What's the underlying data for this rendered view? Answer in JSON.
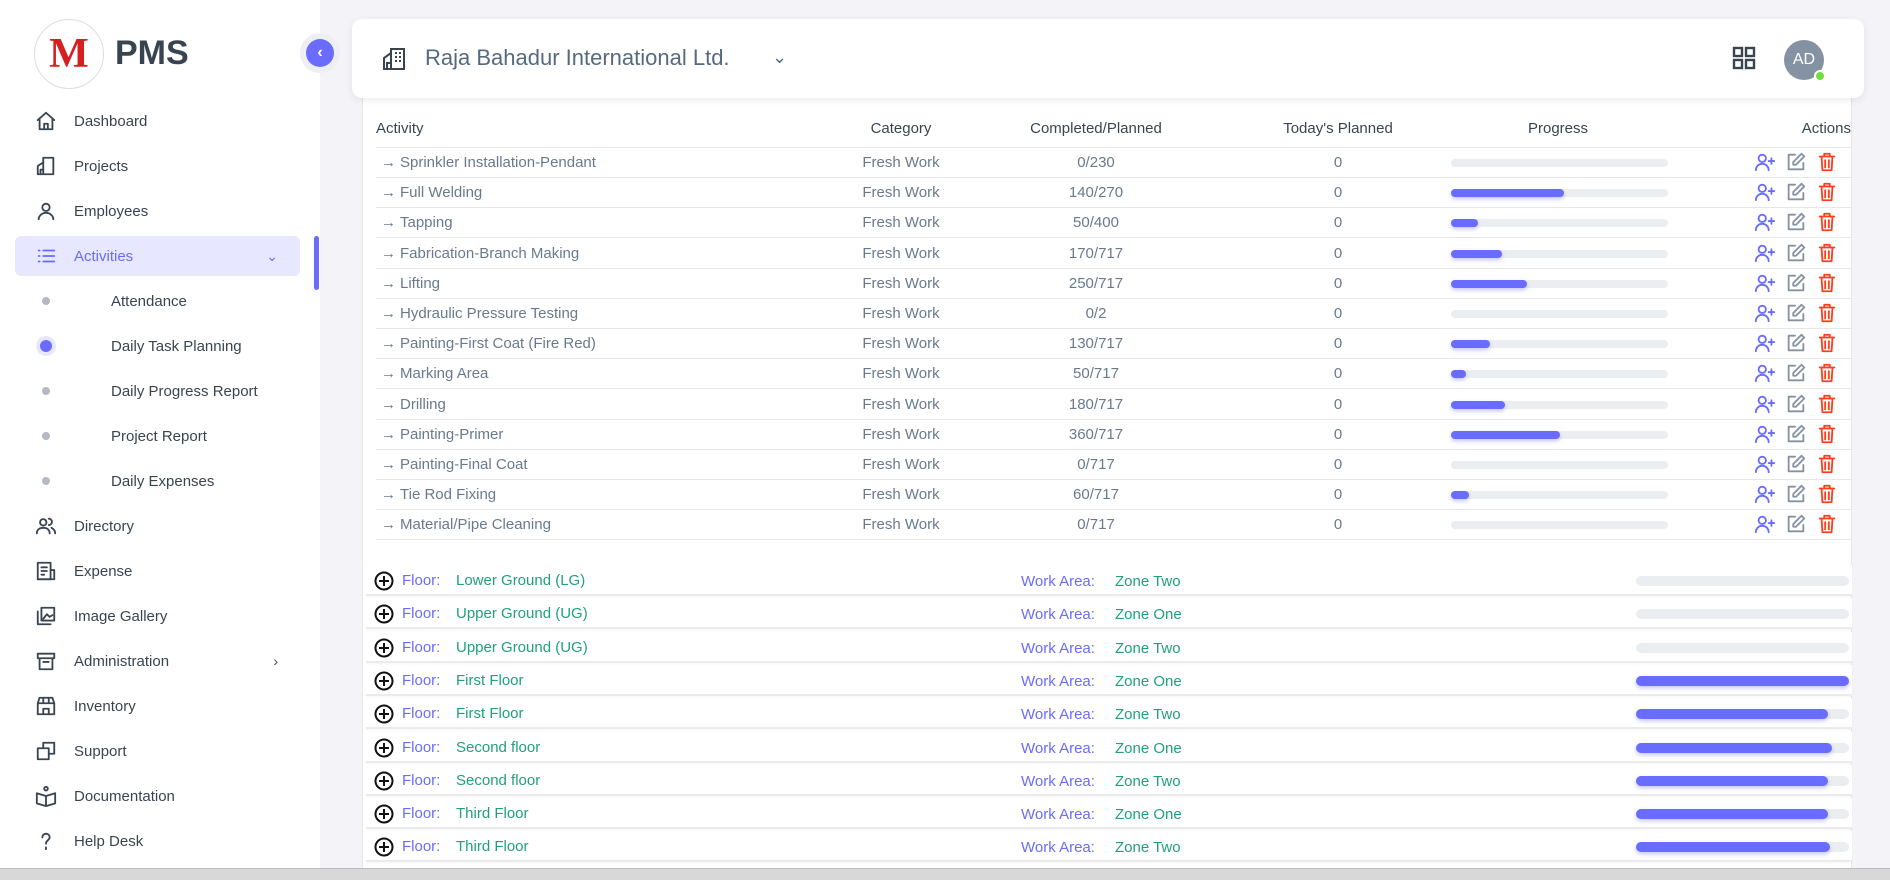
{
  "brand": {
    "logo_letter": "M",
    "name": "PMS"
  },
  "sidebar": {
    "items": [
      {
        "label": "Dashboard",
        "icon": "home-icon"
      },
      {
        "label": "Projects",
        "icon": "building-icon"
      },
      {
        "label": "Employees",
        "icon": "user-icon"
      },
      {
        "label": "Activities",
        "icon": "list-icon",
        "active": true,
        "expanded": true
      },
      {
        "label": "Directory",
        "icon": "users-icon"
      },
      {
        "label": "Expense",
        "icon": "receipt-icon"
      },
      {
        "label": "Image Gallery",
        "icon": "gallery-icon"
      },
      {
        "label": "Administration",
        "icon": "archive-icon",
        "has_submenu": true
      },
      {
        "label": "Inventory",
        "icon": "store-icon"
      },
      {
        "label": "Support",
        "icon": "copy-icon"
      },
      {
        "label": "Documentation",
        "icon": "book-icon"
      },
      {
        "label": "Help Desk",
        "icon": "question-icon"
      }
    ],
    "sub_items": [
      {
        "label": "Attendance"
      },
      {
        "label": "Daily Task Planning",
        "active": true
      },
      {
        "label": "Daily Progress Report"
      },
      {
        "label": "Project Report"
      },
      {
        "label": "Daily Expenses"
      }
    ]
  },
  "header": {
    "project": "Raja Bahadur International Ltd.",
    "avatar_initials": "AD",
    "status": "online"
  },
  "table": {
    "columns": [
      "Activity",
      "Category",
      "Completed/Planned",
      "Today's Planned",
      "Progress",
      "Actions"
    ],
    "rows": [
      {
        "activity": "Sprinkler Installation-Pendant",
        "category": "Fresh Work",
        "completed": "0/230",
        "today": "0",
        "progress": 0
      },
      {
        "activity": "Full Welding",
        "category": "Fresh Work",
        "completed": "140/270",
        "today": "0",
        "progress": 51.9
      },
      {
        "activity": "Tapping",
        "category": "Fresh Work",
        "completed": "50/400",
        "today": "0",
        "progress": 12.5
      },
      {
        "activity": "Fabrication-Branch Making",
        "category": "Fresh Work",
        "completed": "170/717",
        "today": "0",
        "progress": 23.7
      },
      {
        "activity": "Lifting",
        "category": "Fresh Work",
        "completed": "250/717",
        "today": "0",
        "progress": 34.9
      },
      {
        "activity": "Hydraulic Pressure Testing",
        "category": "Fresh Work",
        "completed": "0/2",
        "today": "0",
        "progress": 0
      },
      {
        "activity": "Painting-First Coat (Fire Red)",
        "category": "Fresh Work",
        "completed": "130/717",
        "today": "0",
        "progress": 18.1
      },
      {
        "activity": "Marking Area",
        "category": "Fresh Work",
        "completed": "50/717",
        "today": "0",
        "progress": 7
      },
      {
        "activity": "Drilling",
        "category": "Fresh Work",
        "completed": "180/717",
        "today": "0",
        "progress": 25.1
      },
      {
        "activity": "Painting-Primer",
        "category": "Fresh Work",
        "completed": "360/717",
        "today": "0",
        "progress": 50.2
      },
      {
        "activity": "Painting-Final Coat",
        "category": "Fresh Work",
        "completed": "0/717",
        "today": "0",
        "progress": 0
      },
      {
        "activity": "Tie Rod Fixing",
        "category": "Fresh Work",
        "completed": "60/717",
        "today": "0",
        "progress": 8.4
      },
      {
        "activity": "Material/Pipe Cleaning",
        "category": "Fresh Work",
        "completed": "0/717",
        "today": "0",
        "progress": 0
      }
    ]
  },
  "floors": {
    "floor_label": "Floor:",
    "work_area_label": "Work Area:",
    "items": [
      {
        "floor": "Lower Ground (LG)",
        "work_area": "Zone Two",
        "progress": 0
      },
      {
        "floor": "Upper Ground (UG)",
        "work_area": "Zone One",
        "progress": 0
      },
      {
        "floor": "Upper Ground (UG)",
        "work_area": "Zone Two",
        "progress": 0
      },
      {
        "floor": "First Floor",
        "work_area": "Zone One",
        "progress": 100
      },
      {
        "floor": "First Floor",
        "work_area": "Zone Two",
        "progress": 90
      },
      {
        "floor": "Second floor",
        "work_area": "Zone One",
        "progress": 92
      },
      {
        "floor": "Second floor",
        "work_area": "Zone Two",
        "progress": 90
      },
      {
        "floor": "Third Floor",
        "work_area": "Zone One",
        "progress": 90
      },
      {
        "floor": "Third Floor",
        "work_area": "Zone Two",
        "progress": 91
      }
    ]
  },
  "colors": {
    "primary": "#696cff",
    "success_text": "#20a07c",
    "danger": "#ff3e1d",
    "online": "#71dd37"
  }
}
